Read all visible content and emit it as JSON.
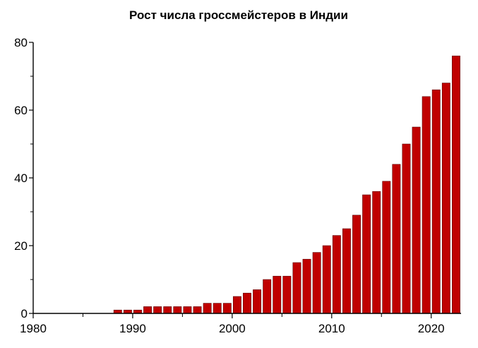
{
  "chart_data": {
    "type": "bar",
    "title": "Рост числа гроссмейстеров в Индии",
    "xlabel": "",
    "ylabel": "",
    "x": [
      1980,
      1981,
      1982,
      1983,
      1984,
      1985,
      1986,
      1987,
      1988,
      1989,
      1990,
      1991,
      1992,
      1993,
      1994,
      1995,
      1996,
      1997,
      1998,
      1999,
      2000,
      2001,
      2002,
      2003,
      2004,
      2005,
      2006,
      2007,
      2008,
      2009,
      2010,
      2011,
      2012,
      2013,
      2014,
      2015,
      2016,
      2017,
      2018,
      2019,
      2020,
      2021,
      2022
    ],
    "values": [
      0,
      0,
      0,
      0,
      0,
      0,
      0,
      0,
      1,
      1,
      1,
      2,
      2,
      2,
      2,
      2,
      2,
      3,
      3,
      3,
      5,
      6,
      7,
      10,
      11,
      11,
      15,
      16,
      18,
      20,
      23,
      25,
      29,
      35,
      36,
      39,
      44,
      50,
      55,
      64,
      66,
      68,
      76
    ],
    "xlim": [
      1980,
      2023
    ],
    "ylim": [
      0,
      80
    ],
    "x_ticks": [
      "1980",
      "1990",
      "2000",
      "2010",
      "2020"
    ],
    "y_ticks": [
      "0",
      "20",
      "40",
      "60",
      "80"
    ],
    "grid": false,
    "colors": {
      "bar": "#c00000",
      "axis": "#000000"
    }
  }
}
